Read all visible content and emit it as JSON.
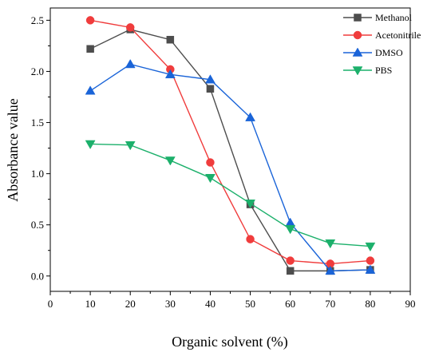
{
  "chart_data": {
    "type": "line",
    "xlabel": "Organic solvent (%)",
    "ylabel": "Absorbance value",
    "xlim": [
      0,
      90
    ],
    "ylim": [
      -0.15,
      2.62
    ],
    "xticks": [
      0,
      10,
      20,
      30,
      40,
      50,
      60,
      70,
      80,
      90
    ],
    "yticks": [
      0.0,
      0.5,
      1.0,
      1.5,
      2.0,
      2.5
    ],
    "ytick_labels": [
      "0.0",
      "0.5",
      "1.0",
      "1.5",
      "2.0",
      "2.5"
    ],
    "grid": false,
    "legend_position": "top-right",
    "x": [
      10,
      20,
      30,
      40,
      50,
      60,
      70,
      80
    ],
    "series": [
      {
        "name": "Methanol",
        "color": "#4d4d4d",
        "marker": "square",
        "values": [
          2.22,
          2.41,
          2.31,
          1.83,
          0.7,
          0.05,
          0.05,
          0.06
        ]
      },
      {
        "name": "Acetonitrile",
        "color": "#f03c3c",
        "marker": "circle",
        "values": [
          2.5,
          2.43,
          2.02,
          1.11,
          0.36,
          0.15,
          0.12,
          0.15
        ]
      },
      {
        "name": "DMSO",
        "color": "#1a64d8",
        "marker": "triangle-up",
        "values": [
          1.81,
          2.07,
          1.97,
          1.92,
          1.55,
          0.52,
          0.05,
          0.06
        ]
      },
      {
        "name": "PBS",
        "color": "#1cb06b",
        "marker": "triangle-down",
        "values": [
          1.29,
          1.28,
          1.13,
          0.96,
          0.71,
          0.46,
          0.32,
          0.29
        ]
      }
    ]
  }
}
